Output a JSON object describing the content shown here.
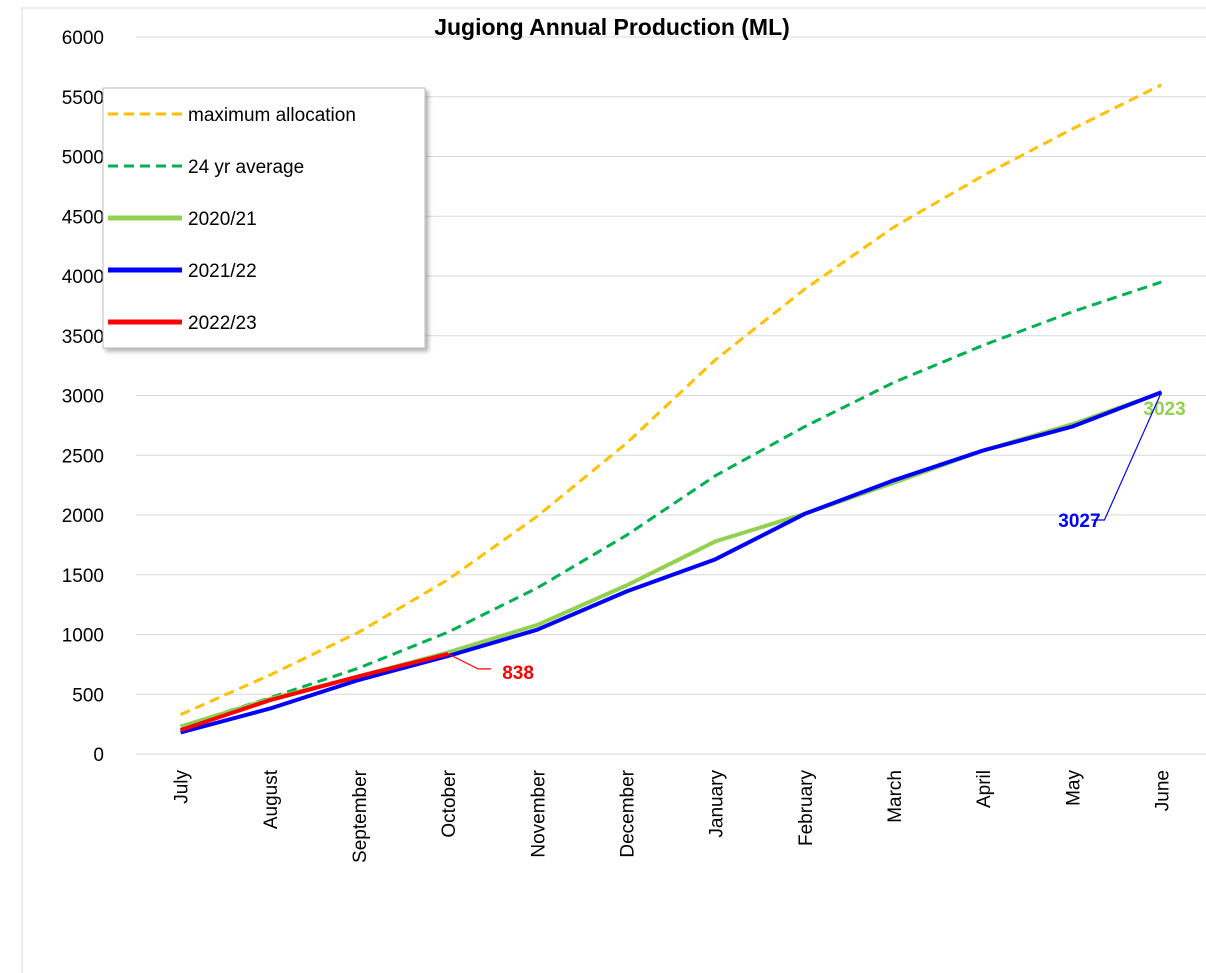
{
  "chart_data": {
    "type": "line",
    "title": "Jugiong Annual Production (ML)",
    "categories": [
      "July",
      "August",
      "September",
      "October",
      "November",
      "December",
      "January",
      "February",
      "March",
      "April",
      "May",
      "June"
    ],
    "series": [
      {
        "name": "maximum allocation",
        "color": "#ffc000",
        "dashed": true,
        "values": [
          330,
          660,
          1020,
          1460,
          1990,
          2600,
          3300,
          3890,
          4410,
          4840,
          5230,
          5600
        ]
      },
      {
        "name": "24 yr average",
        "color": "#00b050",
        "dashed": true,
        "values": [
          230,
          470,
          720,
          1020,
          1390,
          1830,
          2330,
          2740,
          3110,
          3420,
          3700,
          3950
        ]
      },
      {
        "name": "2020/21",
        "color": "#92d050",
        "dashed": false,
        "data_labels": true,
        "values": [
          230,
          460,
          650,
          850,
          1080,
          1410,
          1780,
          2010,
          2270,
          2540,
          2760,
          3023
        ]
      },
      {
        "name": "2021/22",
        "color": "#0000ff",
        "dashed": false,
        "data_labels": true,
        "values": [
          180,
          380,
          620,
          820,
          1040,
          1360,
          1630,
          2010,
          2290,
          2540,
          2740,
          3027
        ]
      },
      {
        "name": "2022/23",
        "color": "#ff0000",
        "dashed": false,
        "data_labels": true,
        "values": [
          200,
          450,
          650,
          838,
          null,
          null,
          null,
          null,
          null,
          null,
          null,
          null
        ]
      }
    ],
    "ylim": [
      0,
      6000
    ],
    "yticks": [
      0,
      500,
      1000,
      1500,
      2000,
      2500,
      3000,
      3500,
      4000,
      4500,
      5000,
      5500,
      6000
    ],
    "grid": true,
    "legend": "top-left"
  }
}
